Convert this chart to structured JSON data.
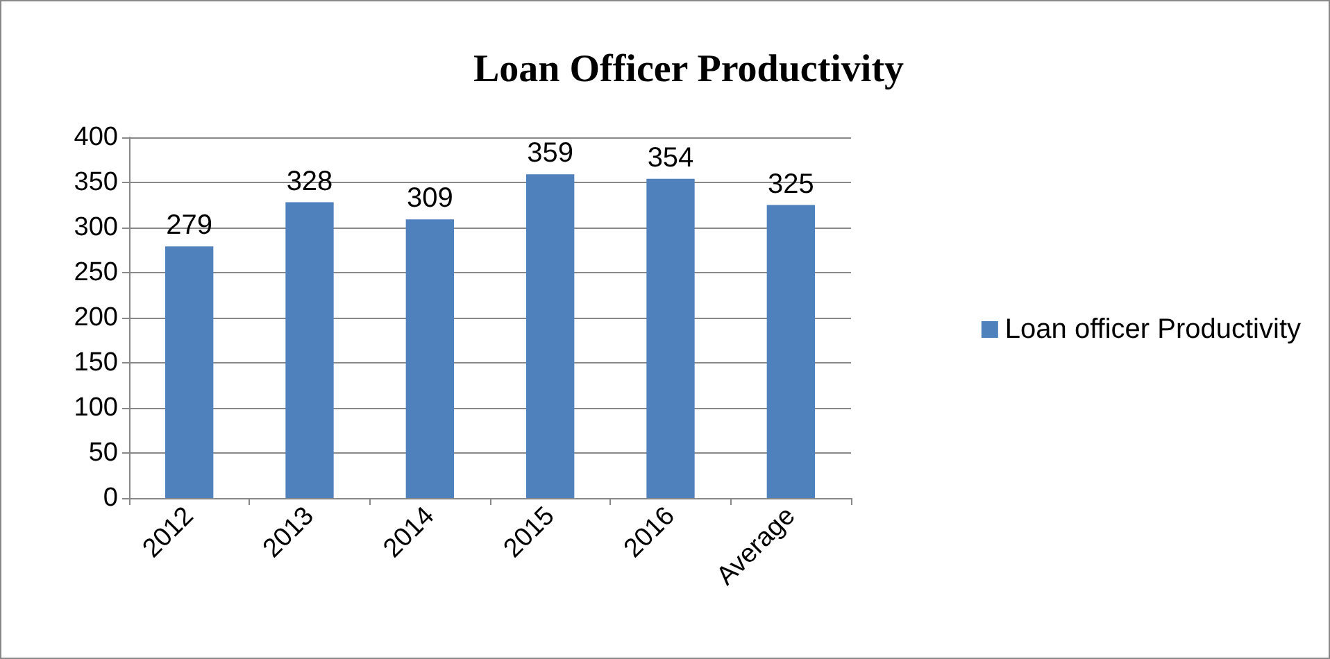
{
  "chart_data": {
    "type": "bar",
    "title": "Loan Officer Productivity",
    "categories": [
      "2012",
      "2013",
      "2014",
      "2015",
      "2016",
      "Average"
    ],
    "series": [
      {
        "name": "Loan officer Productivity",
        "color": "#4f81bd",
        "values": [
          279,
          328,
          309,
          359,
          354,
          325
        ]
      }
    ],
    "ylim": [
      0,
      400
    ],
    "yticks": [
      0,
      50,
      100,
      150,
      200,
      250,
      300,
      350,
      400
    ],
    "grid": "y",
    "legend": "right",
    "data_labels": true
  }
}
